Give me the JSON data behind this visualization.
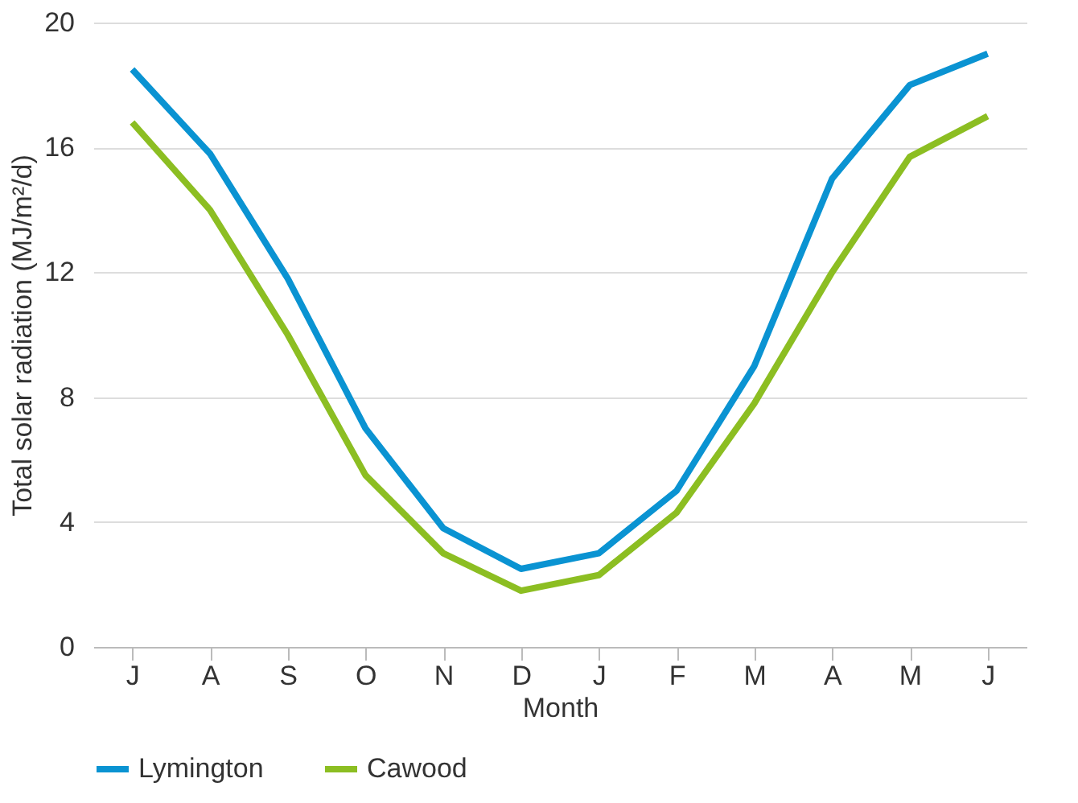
{
  "chart_data": {
    "type": "line",
    "xlabel": "Month",
    "ylabel": "Total solar radiation (MJ/m²/d)",
    "categories": [
      "J",
      "A",
      "S",
      "O",
      "N",
      "D",
      "J",
      "F",
      "M",
      "A",
      "M",
      "J"
    ],
    "series": [
      {
        "name": "Lymington",
        "color": "#0a93d2",
        "values": [
          18.5,
          15.8,
          11.8,
          7,
          3.8,
          2.5,
          3,
          5,
          9,
          15,
          18,
          19
        ]
      },
      {
        "name": "Cawood",
        "color": "#8cbe22",
        "values": [
          16.8,
          14,
          10,
          5.5,
          3,
          1.8,
          2.3,
          4.3,
          7.8,
          12,
          15.7,
          17
        ]
      }
    ],
    "ylim": [
      0,
      20
    ],
    "yticks": [
      0,
      4,
      8,
      12,
      16,
      20
    ],
    "grid": "y",
    "legend": "bottom",
    "marker": "none",
    "line_style": "solid"
  }
}
